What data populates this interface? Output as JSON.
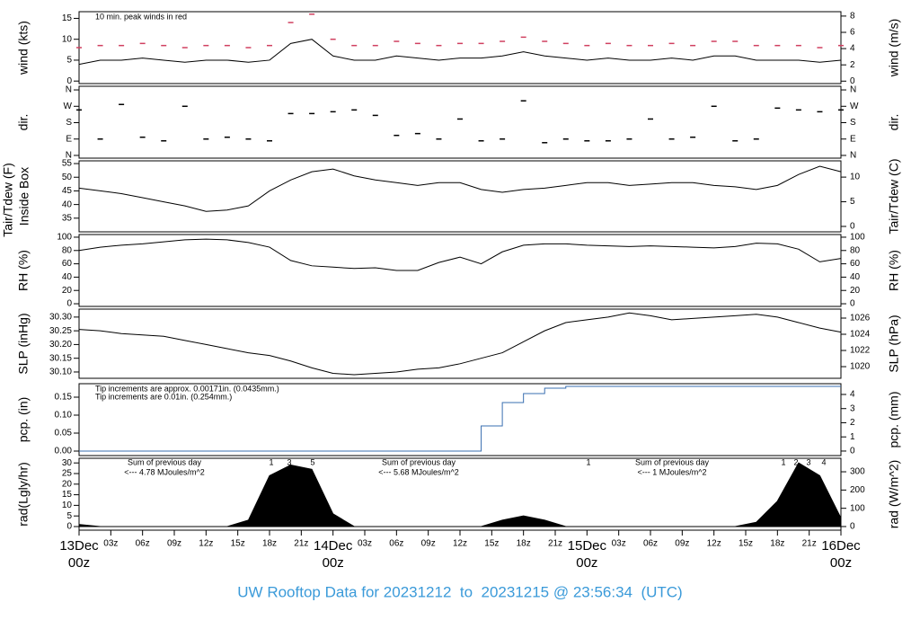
{
  "title": "UW Rooftop Data for 20231212  to  20231215 @ 23:56:34  (UTC)",
  "xlim": [
    0,
    72
  ],
  "xticks": [
    {
      "value": 0,
      "label": "00z"
    },
    {
      "value": 3,
      "label": "03z"
    },
    {
      "value": 6,
      "label": "06z"
    },
    {
      "value": 9,
      "label": "09z"
    },
    {
      "value": 12,
      "label": "12z"
    },
    {
      "value": 15,
      "label": "15z"
    },
    {
      "value": 18,
      "label": "18z"
    },
    {
      "value": 21,
      "label": "21z"
    },
    {
      "value": 24,
      "label": "00z"
    },
    {
      "value": 27,
      "label": "03z"
    },
    {
      "value": 30,
      "label": "06z"
    },
    {
      "value": 33,
      "label": "09z"
    },
    {
      "value": 36,
      "label": "12z"
    },
    {
      "value": 39,
      "label": "15z"
    },
    {
      "value": 42,
      "label": "18z"
    },
    {
      "value": 45,
      "label": "21z"
    },
    {
      "value": 48,
      "label": "00z"
    },
    {
      "value": 51,
      "label": "03z"
    },
    {
      "value": 54,
      "label": "06z"
    },
    {
      "value": 57,
      "label": "09z"
    },
    {
      "value": 60,
      "label": "12z"
    },
    {
      "value": 63,
      "label": "15z"
    },
    {
      "value": 66,
      "label": "18z"
    },
    {
      "value": 69,
      "label": "21z"
    },
    {
      "value": 72,
      "label": "00z"
    }
  ],
  "date_ticks": [
    {
      "value": 0,
      "label": "13Dec"
    },
    {
      "value": 24,
      "label": "14Dec"
    },
    {
      "value": 48,
      "label": "15Dec"
    },
    {
      "value": 72,
      "label": "16Dec"
    }
  ],
  "chart_data": [
    {
      "type": "line",
      "ylabel": "wind (kts)",
      "y2label": "wind (m/s)",
      "ylim": [
        -0.6,
        16.6
      ],
      "yticks": [
        0,
        5,
        10,
        15
      ],
      "y2lim": [
        -0.3,
        8.54
      ],
      "y2ticks": [
        0,
        2,
        4,
        6,
        8
      ],
      "annotations": [
        {
          "text": "10 min. peak winds in red",
          "color": "#d04060"
        }
      ],
      "x": [
        0,
        2,
        4,
        6,
        8,
        10,
        12,
        14,
        16,
        18,
        20,
        22,
        24,
        26,
        28,
        30,
        32,
        34,
        36,
        38,
        40,
        42,
        44,
        46,
        48,
        50,
        52,
        54,
        56,
        58,
        60,
        62,
        64,
        66,
        68,
        70,
        72
      ],
      "series": [
        {
          "color": "#000000",
          "style": "line",
          "values": [
            4,
            5,
            5,
            5.5,
            5,
            4.5,
            5,
            5,
            4.5,
            5,
            9,
            10,
            6,
            5,
            5,
            6,
            5.5,
            5,
            5.5,
            5.5,
            6,
            7,
            6,
            5.5,
            5,
            5.5,
            5,
            5,
            5.5,
            5,
            6,
            6,
            5,
            5,
            5,
            4.5,
            5
          ]
        },
        {
          "color": "#d04060",
          "style": "dash",
          "values": [
            8,
            8.5,
            8.5,
            9,
            8.5,
            8,
            8.5,
            8.5,
            8,
            8.5,
            14,
            16,
            10,
            8.5,
            8.5,
            9.5,
            9,
            8.5,
            9,
            9,
            9.5,
            10.5,
            9.5,
            9,
            8.5,
            9,
            8.5,
            8.5,
            9,
            8.5,
            9.5,
            9.5,
            8.5,
            8.5,
            8.5,
            8,
            8.5
          ]
        }
      ]
    },
    {
      "type": "scatter",
      "ylabel": "dir.",
      "y2label": "dir.",
      "ylim": [
        -15,
        380
      ],
      "yticks": [
        {
          "value": 0,
          "label": "N"
        },
        {
          "value": 90,
          "label": "E"
        },
        {
          "value": 180,
          "label": "S"
        },
        {
          "value": 270,
          "label": "W"
        },
        {
          "value": 360,
          "label": "N"
        }
      ],
      "y2lim": [
        -15,
        380
      ],
      "y2ticks": [
        {
          "value": 0,
          "label": "N"
        },
        {
          "value": 90,
          "label": "E"
        },
        {
          "value": 180,
          "label": "S"
        },
        {
          "value": 270,
          "label": "W"
        },
        {
          "value": 360,
          "label": "N"
        }
      ],
      "x": [
        0,
        2,
        4,
        6,
        8,
        10,
        12,
        14,
        16,
        18,
        20,
        22,
        24,
        26,
        28,
        30,
        32,
        34,
        36,
        38,
        40,
        42,
        44,
        46,
        48,
        50,
        52,
        54,
        56,
        58,
        60,
        62,
        64,
        66,
        68,
        70,
        72
      ],
      "series": [
        {
          "color": "#000000",
          "style": "dash",
          "values": [
            250,
            90,
            280,
            100,
            80,
            270,
            90,
            100,
            90,
            80,
            230,
            230,
            240,
            250,
            220,
            110,
            120,
            90,
            200,
            80,
            90,
            300,
            70,
            90,
            80,
            80,
            90,
            200,
            90,
            100,
            270,
            80,
            90,
            260,
            250,
            240,
            250
          ]
        }
      ]
    },
    {
      "type": "line",
      "ylabel": "Tair/Tdew (F)",
      "ylabel2": "Inside Box",
      "y2label": "Tair/Tdew (C)",
      "ylim": [
        30,
        56
      ],
      "yticks": [
        35,
        40,
        45,
        50,
        55
      ],
      "y2lim": [
        -1.1,
        13.3
      ],
      "y2ticks": [
        0,
        5,
        10
      ],
      "x": [
        0,
        2,
        4,
        6,
        8,
        10,
        12,
        14,
        16,
        18,
        20,
        22,
        24,
        26,
        28,
        30,
        32,
        34,
        36,
        38,
        40,
        42,
        44,
        46,
        48,
        50,
        52,
        54,
        56,
        58,
        60,
        62,
        64,
        66,
        68,
        70,
        72
      ],
      "series": [
        {
          "color": "#000000",
          "style": "line",
          "values": [
            46,
            45,
            44,
            42.5,
            41,
            39.5,
            37.5,
            38,
            39.5,
            45,
            49,
            52,
            53,
            50.5,
            49,
            48,
            47,
            48,
            48,
            45.5,
            44.5,
            45.5,
            46,
            47,
            48,
            48,
            47,
            47.5,
            48,
            48,
            47,
            46.5,
            45.5,
            47,
            51,
            54,
            52
          ]
        }
      ]
    },
    {
      "type": "line",
      "ylabel": "RH (%)",
      "y2label": "RH (%)",
      "ylim": [
        -4,
        104
      ],
      "yticks": [
        0,
        20,
        40,
        60,
        80,
        100
      ],
      "y2lim": [
        -4,
        104
      ],
      "y2ticks": [
        0,
        20,
        40,
        60,
        80,
        100
      ],
      "x": [
        0,
        2,
        4,
        6,
        8,
        10,
        12,
        14,
        16,
        18,
        20,
        22,
        24,
        26,
        28,
        30,
        32,
        34,
        36,
        38,
        40,
        42,
        44,
        46,
        48,
        50,
        52,
        54,
        56,
        58,
        60,
        62,
        64,
        66,
        68,
        70,
        72
      ],
      "series": [
        {
          "color": "#000000",
          "style": "line",
          "values": [
            80,
            85,
            88,
            90,
            93,
            96,
            97,
            96,
            92,
            85,
            65,
            57,
            55,
            53,
            54,
            50,
            50,
            62,
            70,
            60,
            78,
            88,
            90,
            90,
            88,
            87,
            86,
            87,
            86,
            85,
            84,
            86,
            91,
            90,
            82,
            63,
            68
          ]
        }
      ]
    },
    {
      "type": "line",
      "ylabel": "SLP (inHg)",
      "y2label": "SLP (hPa)",
      "ylim": [
        30.077,
        30.329
      ],
      "yticks": [
        {
          "value": 30.1,
          "label": "30.10"
        },
        30.15,
        {
          "value": 30.2,
          "label": "30.20"
        },
        30.25,
        {
          "value": 30.3,
          "label": "30.30"
        }
      ],
      "y2lim": [
        1018.56,
        1027.11
      ],
      "y2ticks": [
        1020,
        1022,
        1024,
        1026
      ],
      "x": [
        0,
        2,
        4,
        6,
        8,
        10,
        12,
        14,
        16,
        18,
        20,
        22,
        24,
        26,
        28,
        30,
        32,
        34,
        36,
        38,
        40,
        42,
        44,
        46,
        48,
        50,
        52,
        54,
        56,
        58,
        60,
        62,
        64,
        66,
        68,
        70,
        72
      ],
      "series": [
        {
          "color": "#000000",
          "style": "line",
          "values": [
            30.255,
            30.25,
            30.24,
            30.235,
            30.23,
            30.215,
            30.2,
            30.185,
            30.17,
            30.16,
            30.14,
            30.115,
            30.095,
            30.09,
            30.095,
            30.1,
            30.11,
            30.115,
            30.13,
            30.15,
            30.17,
            30.21,
            30.25,
            30.28,
            30.29,
            30.3,
            30.315,
            30.305,
            30.29,
            30.295,
            30.3,
            30.305,
            30.31,
            30.3,
            30.28,
            30.26,
            30.245
          ]
        }
      ]
    },
    {
      "type": "line",
      "ylabel": "pcp. (in)",
      "y2label": "pcp. (mm)",
      "ylim": [
        -0.0125,
        0.1875
      ],
      "yticks": [
        {
          "value": 0,
          "label": "0.00"
        },
        0.05,
        {
          "value": 0.1,
          "label": "0.10"
        },
        0.15
      ],
      "y2lim": [
        -0.32,
        4.76
      ],
      "y2ticks": [
        0,
        1,
        2,
        3,
        4
      ],
      "annotations": [
        {
          "text": "Tip increments are approx. 0.00171in. (0.0435mm.)",
          "color": "#d04060"
        },
        {
          "text": "Tip increments are 0.01in. (0.254mm.)",
          "color": "#3a9ad9"
        }
      ],
      "x": [
        0,
        2,
        4,
        6,
        8,
        10,
        12,
        14,
        16,
        18,
        20,
        22,
        24,
        26,
        28,
        30,
        32,
        34,
        36,
        38,
        40,
        42,
        44,
        46,
        48,
        50,
        52,
        54,
        56,
        58,
        60,
        62,
        64,
        66,
        68,
        70,
        72
      ],
      "series": [
        {
          "color": "#3a6fb0",
          "style": "step",
          "values": [
            0,
            0,
            0,
            0,
            0,
            0,
            0,
            0,
            0,
            0,
            0,
            0,
            0,
            0,
            0,
            0,
            0,
            0,
            0,
            0.07,
            0.135,
            0.16,
            0.175,
            0.18,
            0.18,
            0.18,
            0.18,
            0.18,
            0.18,
            0.18,
            0.18,
            0.18,
            0.18,
            0.18,
            0.18,
            0.18,
            0.18
          ]
        }
      ]
    },
    {
      "type": "area",
      "ylabel": "rad(Lgly/hr)",
      "y2label": "rad (W/m^2)",
      "ylim": [
        -1.7,
        32.2
      ],
      "yticks": [
        0,
        5,
        10,
        15,
        20,
        25,
        30
      ],
      "y2lim": [
        -19.8,
        374
      ],
      "y2ticks": [
        0,
        100,
        200,
        300
      ],
      "annotations": [
        {
          "text": "Sum of previous day",
          "color": "#9b30d0"
        },
        {
          "text": "<--- 4.78 MJoules/m^2",
          "color": "#9b30d0"
        },
        {
          "text": "Sum of previous day",
          "color": "#9b30d0"
        },
        {
          "text": "<--- 5.68 MJoules/m^2",
          "color": "#9b30d0"
        },
        {
          "text": "Sum of previous day",
          "color": "#9b30d0"
        },
        {
          "text": "<--- 1 MJoules/m^2",
          "color": "#9b30d0"
        },
        {
          "text": "1",
          "color": "#9b30d0"
        },
        {
          "text": "3",
          "color": "#9b30d0"
        },
        {
          "text": "5",
          "color": "#9b30d0"
        },
        {
          "text": "1",
          "color": "#9b30d0"
        },
        {
          "text": "1",
          "color": "#9b30d0"
        },
        {
          "text": "2",
          "color": "#9b30d0"
        },
        {
          "text": "3",
          "color": "#9b30d0"
        },
        {
          "text": "4",
          "color": "#9b30d0"
        }
      ],
      "x": [
        0,
        2,
        4,
        6,
        8,
        10,
        12,
        14,
        16,
        18,
        20,
        22,
        24,
        26,
        28,
        30,
        32,
        34,
        36,
        38,
        40,
        42,
        44,
        46,
        48,
        50,
        52,
        54,
        56,
        58,
        60,
        62,
        64,
        66,
        68,
        70,
        72
      ],
      "series": [
        {
          "color": "#000000",
          "style": "area",
          "values": [
            1,
            0,
            0,
            0,
            0,
            0,
            0,
            0,
            3,
            24,
            29,
            27,
            6,
            0,
            0,
            0,
            0,
            0,
            0,
            0,
            3,
            5,
            3,
            0,
            0,
            0,
            0,
            0,
            0,
            0,
            0,
            0,
            2,
            12,
            30,
            24,
            4
          ]
        }
      ]
    }
  ]
}
